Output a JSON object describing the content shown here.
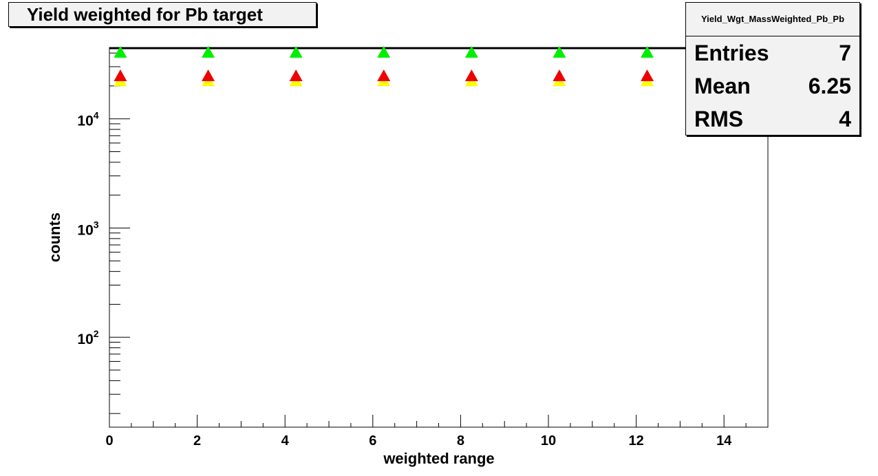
{
  "chart_data": {
    "type": "scatter",
    "title": "Yield weighted for Pb target",
    "xlabel": "weighted range",
    "ylabel": "counts",
    "xlim": [
      0,
      15
    ],
    "ylim": [
      15,
      45000
    ],
    "y_scale": "log",
    "grid": false,
    "x_ticks": [
      "0",
      "2",
      "4",
      "6",
      "8",
      "10",
      "12",
      "14"
    ],
    "y_ticks": [
      {
        "base": "10",
        "exp": "4",
        "value": 10000
      },
      {
        "base": "10",
        "exp": "3",
        "value": 1000
      },
      {
        "base": "10",
        "exp": "2",
        "value": 100
      }
    ],
    "x": [
      0.25,
      2.25,
      4.25,
      6.25,
      8.25,
      10.25,
      12.25
    ],
    "series": [
      {
        "color": "#00ee00",
        "marker": "triangle",
        "values": [
          41000,
          41000,
          41000,
          41000,
          41000,
          41000,
          41000
        ]
      },
      {
        "color": "#ee0000",
        "marker": "triangle",
        "values": [
          25000,
          25000,
          25000,
          25000,
          25000,
          25000,
          25000
        ]
      },
      {
        "color": "#ffff00",
        "marker": "triangle",
        "values": [
          22500,
          22500,
          22500,
          22500,
          22500,
          22500,
          22500
        ]
      }
    ],
    "hline": 44000
  },
  "stats": {
    "name": "Yield_Wgt_MassWeighted_Pb_Pb",
    "rows": [
      {
        "label": "Entries",
        "value": "7"
      },
      {
        "label": "Mean",
        "value": "6.25"
      },
      {
        "label": "RMS",
        "value": "4"
      }
    ]
  }
}
